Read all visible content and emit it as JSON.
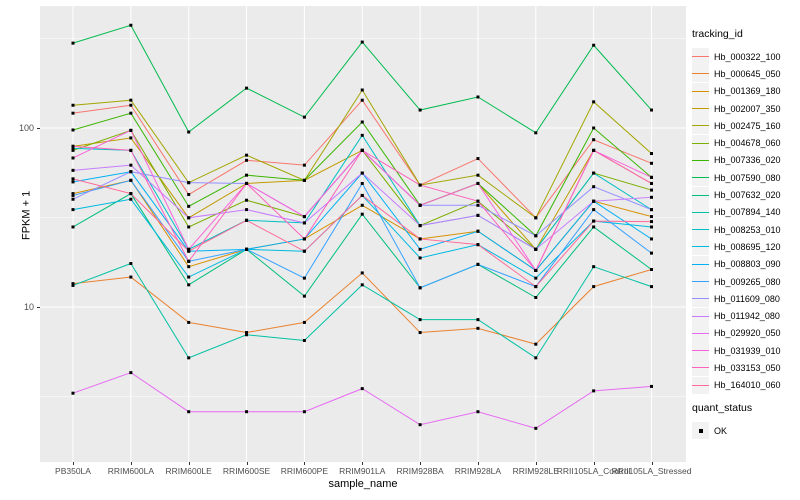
{
  "y_axis": {
    "title": "FPKM + 1",
    "tick_labels": [
      "100",
      "10"
    ],
    "tick_values": [
      100,
      10
    ]
  },
  "x_axis": {
    "title": "sample_name"
  },
  "legend": {
    "tracking_title": "tracking_id",
    "quant_title": "quant_status",
    "quant_ok_label": "OK"
  },
  "colors": {
    "panel_bg": "#EBEBEB",
    "grid": "#FFFFFF",
    "tick_text": "#4D4D4D",
    "point": "#000000",
    "legend_key_bg": "#F2F2F2"
  },
  "chart_data": {
    "type": "line",
    "title": "",
    "xlabel": "sample_name",
    "ylabel": "FPKM + 1",
    "y_scale": "log10",
    "ylim_approx": [
      1.4,
      480
    ],
    "grid": true,
    "legend_position": "right",
    "point_shape": "filled-black-square",
    "quant_status": "OK",
    "categories": [
      "PB350LA",
      "RRIM600LA",
      "RRIM600LE",
      "RRIM600SE",
      "RRIM600PE",
      "RRIM901LA",
      "RRIM928BA",
      "RRIM928LA",
      "RRIM928LE",
      "RRII105LA_Control",
      "RRII105LA_Stressed"
    ],
    "series": [
      {
        "name": "Hb_000322_100",
        "color": "#F8766D",
        "values": [
          121,
          134,
          42.5,
          66,
          62,
          143,
          48,
          67.5,
          31.5,
          86,
          63.5
        ]
      },
      {
        "name": "Hb_000645_050",
        "color": "#EA8331",
        "values": [
          13.5,
          14.7,
          8.2,
          7.2,
          8.2,
          15.5,
          7.2,
          7.6,
          6.2,
          13,
          16.2
        ]
      },
      {
        "name": "Hb_001369_180",
        "color": "#D89000",
        "values": [
          43,
          51,
          16.8,
          21,
          24,
          37,
          24,
          26.5,
          16,
          39,
          32
        ]
      },
      {
        "name": "Hb_002007_350",
        "color": "#C09B00",
        "values": [
          79,
          88,
          31.5,
          49,
          51,
          75,
          37,
          49,
          21,
          75,
          49
        ]
      },
      {
        "name": "Hb_002475_160",
        "color": "#A3A500",
        "values": [
          134,
          143,
          49.5,
          70.5,
          51,
          163,
          48,
          54.5,
          31.5,
          140,
          72
        ]
      },
      {
        "name": "Hb_004678_060",
        "color": "#7CAE00",
        "values": [
          75,
          97,
          28,
          39.5,
          32,
          75,
          28.5,
          39,
          21,
          56,
          45
        ]
      },
      {
        "name": "Hb_007336_020",
        "color": "#39B600",
        "values": [
          97.5,
          121,
          36.5,
          54.5,
          51,
          108,
          37,
          49,
          25,
          100,
          53
        ]
      },
      {
        "name": "Hb_007590_080",
        "color": "#00BB4E",
        "values": [
          298,
          375,
          95,
          167,
          115,
          302,
          126,
          149,
          94,
          290,
          126
        ]
      },
      {
        "name": "Hb_007632_020",
        "color": "#00BF7D",
        "values": [
          28,
          43,
          13.3,
          21,
          11.5,
          33,
          12.8,
          17.3,
          11.3,
          28,
          16.2
        ]
      },
      {
        "name": "Hb_007894_140",
        "color": "#00C1A3",
        "values": [
          13.2,
          17.5,
          5.2,
          7,
          6.5,
          13.3,
          8.5,
          8.5,
          5.2,
          16.8,
          13
        ]
      },
      {
        "name": "Hb_008253_010",
        "color": "#00BFC4",
        "values": [
          77,
          75,
          21,
          30.5,
          29.5,
          91,
          28.5,
          32.5,
          21,
          56,
          35
        ]
      },
      {
        "name": "Hb_008695_120",
        "color": "#00BAE0",
        "values": [
          35,
          40,
          14.7,
          21,
          20.5,
          42,
          18.8,
          22.3,
          14.5,
          30.2,
          28
        ]
      },
      {
        "name": "Hb_008803_090",
        "color": "#00B0F6",
        "values": [
          50,
          57,
          20.5,
          21,
          24,
          56,
          21,
          26.5,
          16,
          39,
          24
        ]
      },
      {
        "name": "Hb_009265_080",
        "color": "#35A2FF",
        "values": [
          42,
          51,
          18,
          21,
          14.5,
          49,
          12.8,
          17.3,
          13,
          35,
          20
        ]
      },
      {
        "name": "Hb_011609_080",
        "color": "#9590FF",
        "values": [
          40,
          57,
          49.5,
          49,
          32,
          75,
          37,
          37,
          25,
          47,
          35
        ]
      },
      {
        "name": "Hb_011942_080",
        "color": "#C77CFF",
        "values": [
          58,
          62,
          31.5,
          35,
          29.5,
          56,
          28.5,
          32.5,
          21,
          39,
          41
        ]
      },
      {
        "name": "Hb_029920_050",
        "color": "#E76BF3",
        "values": [
          3.3,
          4.3,
          2.6,
          2.6,
          2.6,
          3.5,
          2.2,
          2.6,
          2.1,
          3.4,
          3.6
        ]
      },
      {
        "name": "Hb_031939_010",
        "color": "#FA62DB",
        "values": [
          68,
          97,
          21,
          49,
          32,
          75,
          37,
          49,
          16,
          75,
          53
        ]
      },
      {
        "name": "Hb_033153_050",
        "color": "#FF62BC",
        "values": [
          79,
          75,
          18,
          49,
          24,
          75,
          48,
          39,
          16,
          75,
          49
        ]
      },
      {
        "name": "Hb_164010_060",
        "color": "#FF6A98",
        "values": [
          52,
          43,
          20.5,
          30.5,
          20.5,
          42,
          24,
          22.3,
          13,
          30.2,
          30
        ]
      }
    ]
  }
}
